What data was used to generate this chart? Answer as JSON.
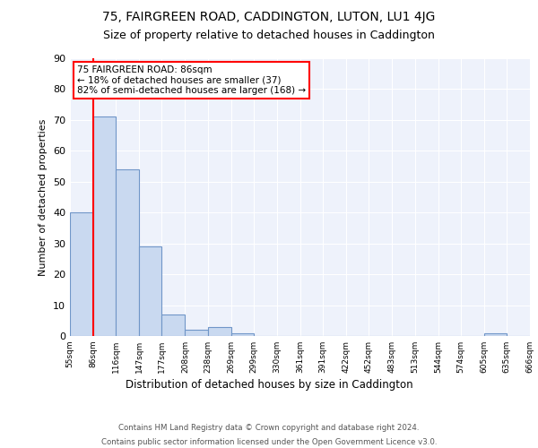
{
  "title1": "75, FAIRGREEN ROAD, CADDINGTON, LUTON, LU1 4JG",
  "title2": "Size of property relative to detached houses in Caddington",
  "xlabel": "Distribution of detached houses by size in Caddington",
  "ylabel": "Number of detached properties",
  "bins": [
    "55sqm",
    "86sqm",
    "116sqm",
    "147sqm",
    "177sqm",
    "208sqm",
    "238sqm",
    "269sqm",
    "299sqm",
    "330sqm",
    "361sqm",
    "391sqm",
    "422sqm",
    "452sqm",
    "483sqm",
    "513sqm",
    "544sqm",
    "574sqm",
    "605sqm",
    "635sqm",
    "666sqm"
  ],
  "values": [
    40,
    71,
    54,
    29,
    7,
    2,
    3,
    1,
    0,
    0,
    0,
    0,
    0,
    0,
    0,
    0,
    0,
    0,
    1,
    0,
    0
  ],
  "bar_color": "#c9d9f0",
  "bar_edge_color": "#7096c8",
  "annotation_text": "75 FAIRGREEN ROAD: 86sqm\n← 18% of detached houses are smaller (37)\n82% of semi-detached houses are larger (168) →",
  "annotation_box_color": "white",
  "annotation_box_edge_color": "red",
  "vline_color": "red",
  "ylim": [
    0,
    90
  ],
  "yticks": [
    0,
    10,
    20,
    30,
    40,
    50,
    60,
    70,
    80,
    90
  ],
  "bg_color": "#eef2fb",
  "footer1": "Contains HM Land Registry data © Crown copyright and database right 2024.",
  "footer2": "Contains public sector information licensed under the Open Government Licence v3.0.",
  "title1_fontsize": 10,
  "title2_fontsize": 9,
  "bin_edges": [
    55,
    86,
    116,
    147,
    177,
    208,
    238,
    269,
    299,
    330,
    361,
    391,
    422,
    452,
    483,
    513,
    544,
    574,
    605,
    635,
    666
  ]
}
